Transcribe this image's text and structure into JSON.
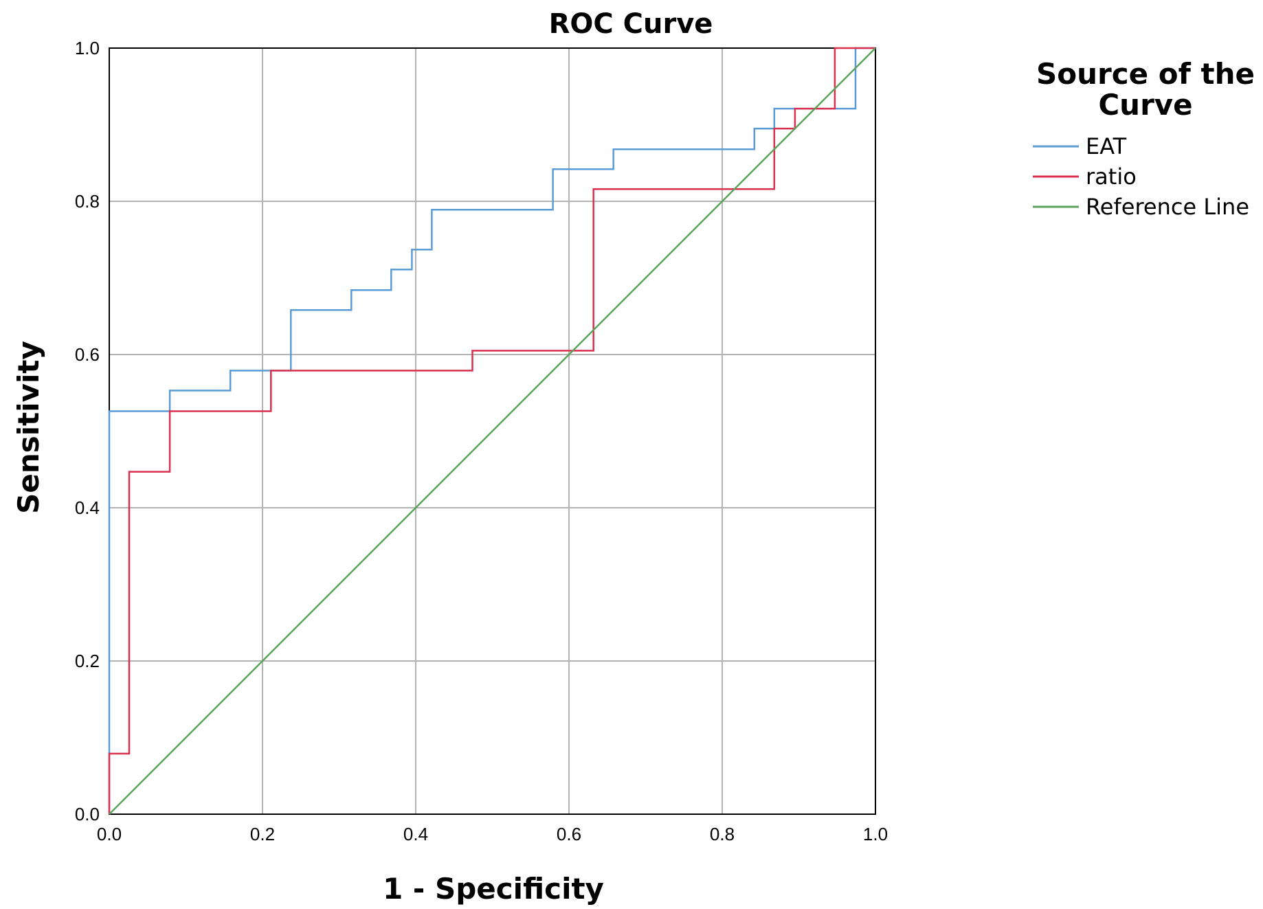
{
  "chart_data": {
    "type": "line",
    "title": "ROC Curve",
    "xlabel": "1 - Specificity",
    "ylabel": "Sensitivity",
    "xlim": [
      0.0,
      1.0
    ],
    "ylim": [
      0.0,
      1.0
    ],
    "xticks": [
      "0.0",
      "0.2",
      "0.4",
      "0.6",
      "0.8",
      "1.0"
    ],
    "yticks": [
      "0.0",
      "0.2",
      "0.4",
      "0.6",
      "0.8",
      "1.0"
    ],
    "grid": true,
    "legend": {
      "title": "Source of the Curve",
      "title_lines": [
        "Source of the",
        "Curve"
      ],
      "placement": "right"
    },
    "series": [
      {
        "name": "EAT",
        "color": "#5b9bd5",
        "step": true,
        "points": [
          [
            0.0,
            0.0
          ],
          [
            0.0,
            0.526
          ],
          [
            0.079,
            0.526
          ],
          [
            0.079,
            0.553
          ],
          [
            0.158,
            0.553
          ],
          [
            0.158,
            0.579
          ],
          [
            0.237,
            0.579
          ],
          [
            0.237,
            0.658
          ],
          [
            0.316,
            0.658
          ],
          [
            0.316,
            0.684
          ],
          [
            0.368,
            0.684
          ],
          [
            0.368,
            0.711
          ],
          [
            0.395,
            0.711
          ],
          [
            0.395,
            0.737
          ],
          [
            0.421,
            0.737
          ],
          [
            0.421,
            0.789
          ],
          [
            0.579,
            0.789
          ],
          [
            0.579,
            0.842
          ],
          [
            0.658,
            0.842
          ],
          [
            0.658,
            0.868
          ],
          [
            0.842,
            0.868
          ],
          [
            0.842,
            0.895
          ],
          [
            0.868,
            0.895
          ],
          [
            0.868,
            0.921
          ],
          [
            0.974,
            0.921
          ],
          [
            0.974,
            1.0
          ],
          [
            1.0,
            1.0
          ]
        ]
      },
      {
        "name": "ratio",
        "color": "#d9304f",
        "step": true,
        "points": [
          [
            0.0,
            0.0
          ],
          [
            0.0,
            0.079
          ],
          [
            0.026,
            0.079
          ],
          [
            0.026,
            0.447
          ],
          [
            0.079,
            0.447
          ],
          [
            0.079,
            0.526
          ],
          [
            0.211,
            0.526
          ],
          [
            0.211,
            0.579
          ],
          [
            0.474,
            0.579
          ],
          [
            0.474,
            0.605
          ],
          [
            0.632,
            0.605
          ],
          [
            0.632,
            0.816
          ],
          [
            0.868,
            0.816
          ],
          [
            0.868,
            0.895
          ],
          [
            0.895,
            0.895
          ],
          [
            0.895,
            0.921
          ],
          [
            0.947,
            0.921
          ],
          [
            0.947,
            1.0
          ],
          [
            1.0,
            1.0
          ]
        ]
      },
      {
        "name": "Reference Line",
        "color": "#5aa35a",
        "step": false,
        "points": [
          [
            0.0,
            0.0
          ],
          [
            1.0,
            1.0
          ]
        ]
      }
    ]
  }
}
